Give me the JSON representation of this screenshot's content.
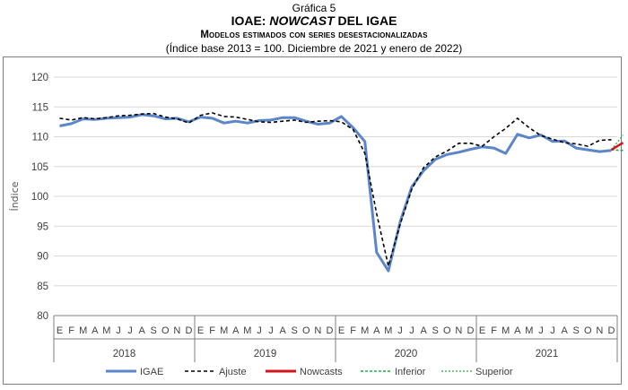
{
  "header": {
    "supertitle": "Gráfica 5",
    "title_a": "IOAE: ",
    "title_b": "NOWCAST",
    "title_c": " DEL IGAE",
    "subtitle": "Modelos estimados con series desestacionalizadas",
    "note": "(Índice base 2013 = 100. Diciembre de 2021 y enero de 2022)"
  },
  "chart_data": {
    "type": "line",
    "ylabel": "Índice",
    "ylim": [
      80,
      120
    ],
    "yticks": [
      80,
      85,
      90,
      95,
      100,
      105,
      110,
      115,
      120
    ],
    "months": [
      "E",
      "F",
      "M",
      "A",
      "M",
      "J",
      "J",
      "A",
      "S",
      "O",
      "N",
      "D",
      "E",
      "F",
      "M",
      "A",
      "M",
      "J",
      "J",
      "A",
      "S",
      "O",
      "N",
      "D",
      "E",
      "F",
      "M",
      "A",
      "M",
      "J",
      "J",
      "A",
      "S",
      "O",
      "N",
      "D",
      "E",
      "F",
      "M",
      "A",
      "M",
      "J",
      "J",
      "A",
      "S",
      "O",
      "N",
      "D"
    ],
    "years": [
      "2018",
      "2019",
      "2020",
      "2021"
    ],
    "series": [
      {
        "name": "IGAE",
        "color": "#5b86c9",
        "values": [
          111.8,
          112.2,
          113.0,
          112.9,
          113.1,
          113.2,
          113.3,
          113.7,
          113.5,
          113.0,
          113.1,
          112.5,
          113.3,
          113.1,
          112.3,
          112.6,
          112.3,
          112.7,
          112.8,
          113.2,
          113.2,
          112.6,
          112.1,
          112.3,
          113.4,
          111.5,
          109.2,
          90.6,
          87.5,
          95.7,
          101.6,
          104.3,
          106.2,
          107.0,
          107.4,
          107.9,
          108.3,
          108.1,
          107.2,
          110.4,
          109.8,
          110.3,
          109.2,
          109.3,
          108.1,
          107.8,
          107.5,
          107.7
        ]
      },
      {
        "name": "Ajuste",
        "color": "#000000",
        "values": [
          113.1,
          112.8,
          113.2,
          113.0,
          113.2,
          113.5,
          113.6,
          113.8,
          113.9,
          113.3,
          113.0,
          112.3,
          113.6,
          114.0,
          113.4,
          113.3,
          112.9,
          112.5,
          112.4,
          112.6,
          112.8,
          112.4,
          112.6,
          112.7,
          112.5,
          111.2,
          107.2,
          97.1,
          88.3,
          95.3,
          101.2,
          104.8,
          106.6,
          107.6,
          108.9,
          108.9,
          108.4,
          110.0,
          111.4,
          113.1,
          111.5,
          110.2,
          109.6,
          109.0,
          108.8,
          108.4,
          109.4,
          109.5
        ]
      },
      {
        "name": "Nowcasts",
        "color": "#d0151b",
        "start_month": 47,
        "values": [
          107.8,
          109.0
        ]
      },
      {
        "name": "Inferior",
        "color": "#22a84a",
        "start_month": 47,
        "values": [
          107.8,
          107.7
        ]
      },
      {
        "name": "Superior",
        "color": "#22a84a",
        "start_month": 47,
        "values": [
          107.8,
          110.3
        ]
      }
    ]
  }
}
